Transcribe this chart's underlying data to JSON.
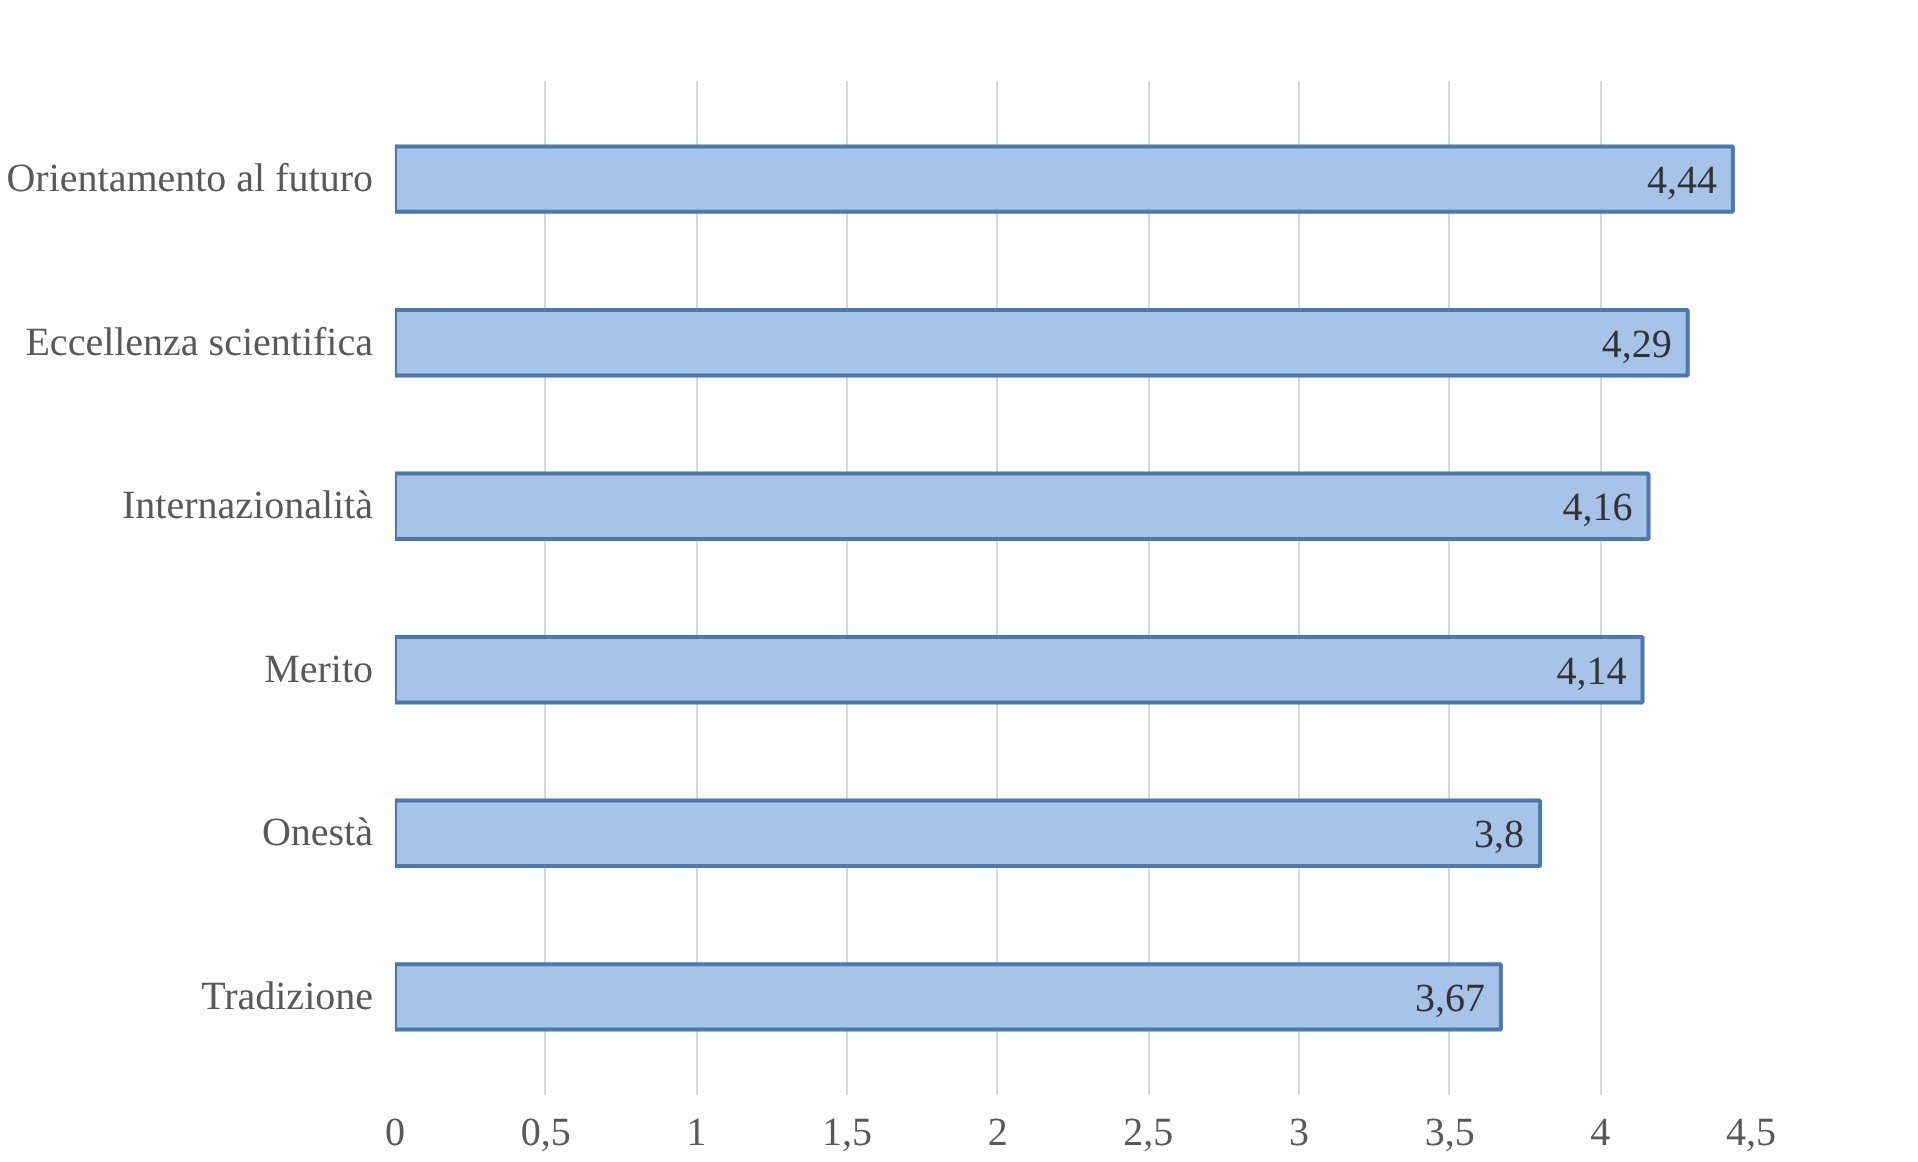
{
  "chart_data": {
    "type": "bar",
    "orientation": "horizontal",
    "categories": [
      "Orientamento al futuro",
      "Eccellenza scientifica",
      "Internazionalità",
      "Merito",
      "Onestà",
      "Tradizione"
    ],
    "values": [
      4.44,
      4.29,
      4.16,
      4.14,
      3.8,
      3.67
    ],
    "value_labels": [
      "4,44",
      "4,29",
      "4,16",
      "4,14",
      "3,8",
      "3,67"
    ],
    "color": "#a5c4e8",
    "xlim": [
      0,
      4.5
    ],
    "xticks": [
      0,
      {
        "value": 0.5,
        "label": "0,5"
      },
      1,
      {
        "value": 1.5,
        "label": "1,5"
      },
      2,
      {
        "value": 2.5,
        "label": "2,5"
      },
      3,
      {
        "value": 3.5,
        "label": "3,5"
      },
      4,
      {
        "value": 4.5,
        "label": "4,5"
      }
    ],
    "grid": "x"
  }
}
